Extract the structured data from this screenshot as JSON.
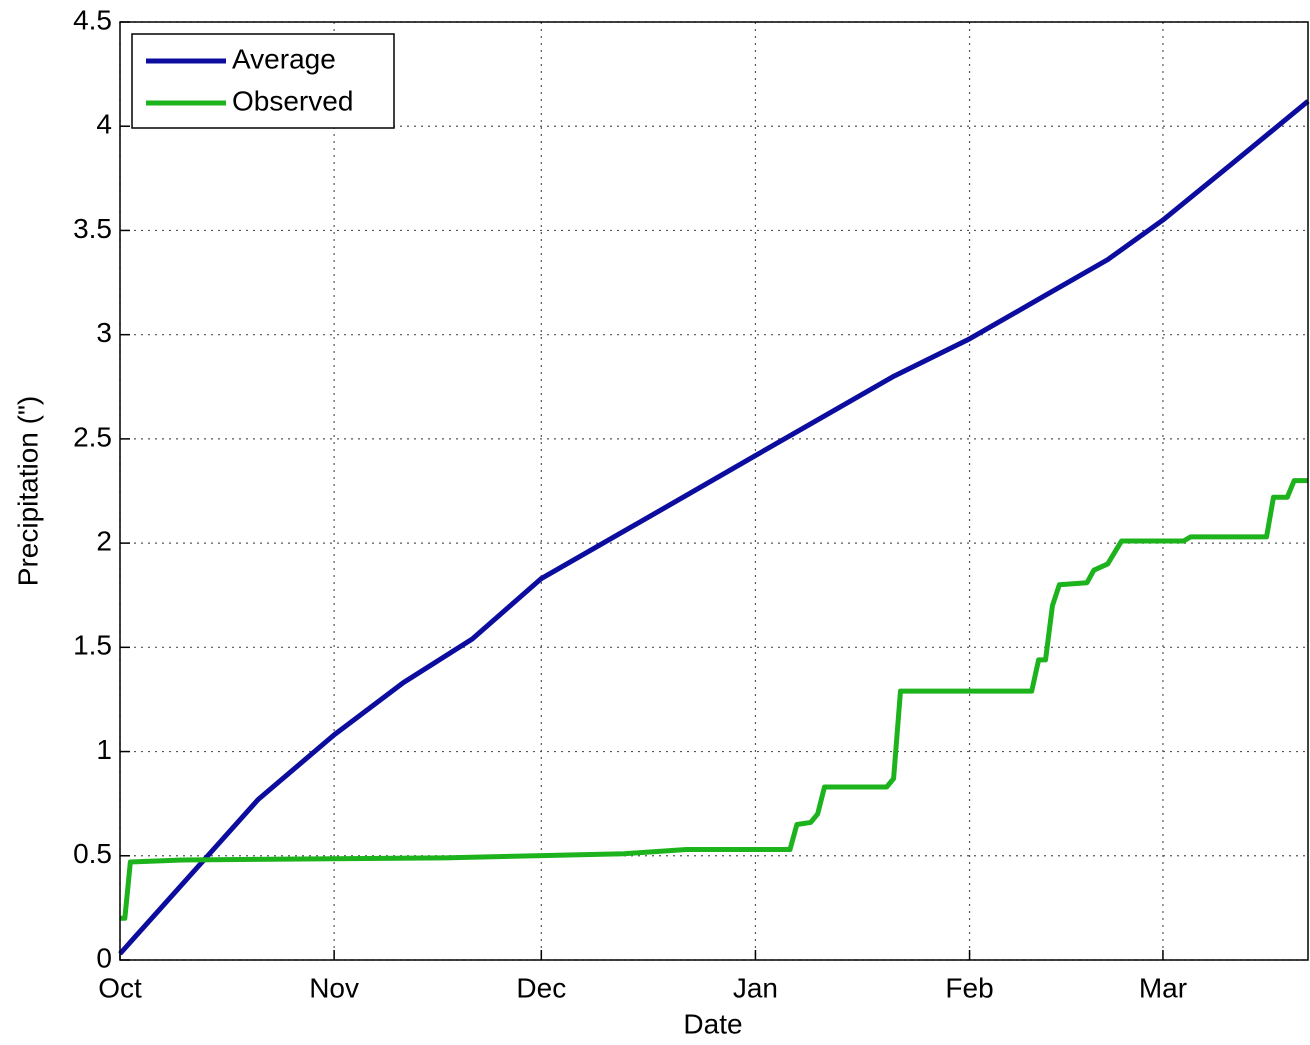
{
  "chart_data": {
    "type": "line",
    "xlabel": "Date",
    "ylabel": "Precipitation (\")",
    "xlim": [
      0,
      172
    ],
    "ylim": [
      0,
      4.5
    ],
    "xticks": [
      {
        "value": 0,
        "label": "Oct"
      },
      {
        "value": 31,
        "label": "Nov"
      },
      {
        "value": 61,
        "label": "Dec"
      },
      {
        "value": 92,
        "label": "Jan"
      },
      {
        "value": 123,
        "label": "Feb"
      },
      {
        "value": 151,
        "label": "Mar"
      }
    ],
    "yticks": [
      0,
      0.5,
      1,
      1.5,
      2,
      2.5,
      3,
      3.5,
      4,
      4.5
    ],
    "grid": true,
    "legend": "upper left",
    "series": [
      {
        "name": "Average",
        "color": "#0c0c9e",
        "x": [
          0,
          10,
          20,
          31,
          41,
          51,
          61,
          71,
          81,
          92,
          102,
          112,
          123,
          133,
          143,
          151,
          161,
          172
        ],
        "values": [
          0.03,
          0.4,
          0.77,
          1.08,
          1.33,
          1.54,
          1.83,
          2.02,
          2.21,
          2.42,
          2.61,
          2.8,
          2.98,
          3.17,
          3.36,
          3.55,
          3.82,
          4.12
        ]
      },
      {
        "name": "Observed",
        "color": "#1db31d",
        "x": [
          0,
          0.7,
          1.5,
          9,
          47,
          73,
          82,
          97,
          98,
          100,
          101,
          102,
          111,
          112,
          113,
          132,
          133,
          134,
          135,
          136,
          140,
          141,
          143,
          145,
          154,
          155,
          166,
          167,
          169,
          170,
          172
        ],
        "values": [
          0.2,
          0.2,
          0.47,
          0.48,
          0.49,
          0.51,
          0.53,
          0.53,
          0.65,
          0.66,
          0.7,
          0.83,
          0.83,
          0.87,
          1.29,
          1.29,
          1.44,
          1.44,
          1.7,
          1.8,
          1.81,
          1.87,
          1.9,
          2.01,
          2.01,
          2.03,
          2.03,
          2.22,
          2.22,
          2.3,
          2.3
        ]
      }
    ]
  }
}
